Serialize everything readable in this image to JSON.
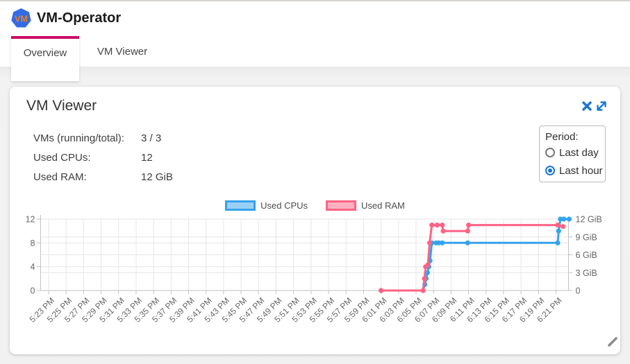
{
  "header": {
    "title": "VM-Operator",
    "logo_text": "VM",
    "logo_color": "#326ce5",
    "logo_text_color": "#ef7c1a"
  },
  "tabs": [
    {
      "label": "Overview",
      "active": true
    },
    {
      "label": "VM Viewer",
      "active": false
    }
  ],
  "accent": {
    "tab_indicator": "#cb0c64",
    "icon_blue": "#1976d2"
  },
  "card": {
    "title": "VM Viewer",
    "stats": [
      {
        "label": "VMs (running/total):",
        "value": "3 / 3"
      },
      {
        "label": "Used CPUs:",
        "value": "12"
      },
      {
        "label": "Used RAM:",
        "value": "12 GiB"
      }
    ],
    "period": {
      "label": "Period:",
      "options": [
        {
          "label": "Last day",
          "checked": false
        },
        {
          "label": "Last hour",
          "checked": true
        }
      ]
    }
  },
  "chart_data": {
    "type": "line",
    "title": "",
    "legend_position": "top",
    "x_axis": {
      "unit": "time",
      "minutes_per_tick": 2,
      "tick_labels": [
        "5:23 PM",
        "5:25 PM",
        "5:27 PM",
        "5:29 PM",
        "5:31 PM",
        "5:33 PM",
        "5:35 PM",
        "5:37 PM",
        "5:39 PM",
        "5:41 PM",
        "5:43 PM",
        "5:45 PM",
        "5:47 PM",
        "5:49 PM",
        "5:51 PM",
        "5:53 PM",
        "5:55 PM",
        "5:57 PM",
        "5:59 PM",
        "6:01 PM",
        "6:03 PM",
        "6:05 PM",
        "6:07 PM",
        "6:09 PM",
        "6:11 PM",
        "6:13 PM",
        "6:15 PM",
        "6:17 PM",
        "6:19 PM",
        "6:21 PM"
      ]
    },
    "left_axis": {
      "ticks": [
        0,
        4,
        8,
        12
      ],
      "range": [
        0,
        12
      ]
    },
    "right_axis": {
      "tick_labels": [
        "0",
        "3 GiB",
        "6 GiB",
        "9 GiB",
        "12 GiB"
      ],
      "tick_values": [
        0,
        3,
        6,
        9,
        12
      ],
      "range": [
        0,
        12
      ]
    },
    "grid": true,
    "series": [
      {
        "name": "Used CPUs",
        "axis": "left",
        "color": "#36a2eb",
        "legend_fill": "#9ad0f5",
        "x_unit": "minutes after 5:23 PM",
        "points": [
          [
            38,
            0
          ],
          [
            42.8,
            0
          ],
          [
            43.0,
            1
          ],
          [
            43.15,
            2
          ],
          [
            43.3,
            3
          ],
          [
            43.45,
            4
          ],
          [
            43.6,
            5
          ],
          [
            43.8,
            8
          ],
          [
            44.3,
            8
          ],
          [
            44.6,
            8
          ],
          [
            45.0,
            8
          ],
          [
            47.9,
            8
          ],
          [
            58.2,
            8
          ],
          [
            58.3,
            10
          ],
          [
            58.5,
            12
          ],
          [
            58.9,
            12
          ],
          [
            59.5,
            12
          ]
        ]
      },
      {
        "name": "Used RAM",
        "axis": "right",
        "color": "#ff6384",
        "legend_fill": "#ffb1c1",
        "x_unit": "minutes after 5:23 PM",
        "points": [
          [
            38,
            0
          ],
          [
            42.8,
            0
          ],
          [
            42.95,
            2
          ],
          [
            43.1,
            4
          ],
          [
            43.35,
            4.3
          ],
          [
            43.55,
            8
          ],
          [
            43.8,
            11
          ],
          [
            44.4,
            11
          ],
          [
            45.0,
            11
          ],
          [
            45.1,
            10
          ],
          [
            47.9,
            10
          ],
          [
            48.0,
            11
          ],
          [
            58.2,
            11
          ],
          [
            58.8,
            10.75
          ]
        ]
      }
    ]
  }
}
